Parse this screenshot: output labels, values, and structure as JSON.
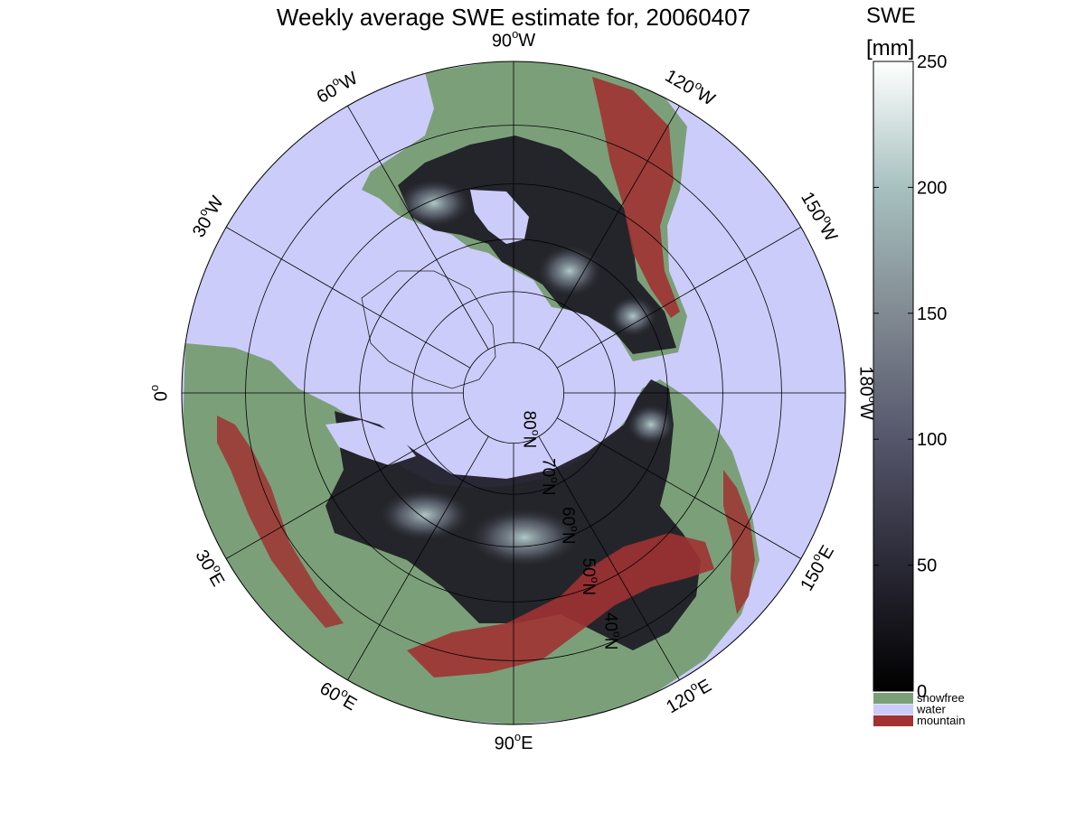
{
  "title": "Weekly average SWE estimate for, 20060407",
  "colorbar": {
    "label_line1": "SWE",
    "label_line2": "[mm]",
    "min": 0,
    "max": 250,
    "ticks": [
      {
        "value": 0,
        "label": "0"
      },
      {
        "value": 50,
        "label": "50"
      },
      {
        "value": 100,
        "label": "100"
      },
      {
        "value": 150,
        "label": "150"
      },
      {
        "value": 200,
        "label": "200"
      },
      {
        "value": 250,
        "label": "250"
      }
    ],
    "gradient_colors": [
      "#000000",
      "#2a2936",
      "#55566b",
      "#818a92",
      "#a7c1bf",
      "#ffffff"
    ],
    "categories": [
      {
        "label": "snowfree",
        "color": "#7ba079"
      },
      {
        "label": "water",
        "color": "#ccccfb"
      },
      {
        "label": "mountain",
        "color": "#a03232"
      }
    ]
  },
  "map": {
    "projection": "north-polar-stereographic",
    "ocean_color": "#ccccfb",
    "land_color": "#7ba079",
    "mountain_color": "#a03232",
    "snow_dark_color": "#1b1a24",
    "snow_light_color": "#a9c4c2",
    "longitude_labels": [
      {
        "deg": 90,
        "hemi": "W",
        "label_angle": 0
      },
      {
        "deg": 120,
        "hemi": "W",
        "label_angle": 30
      },
      {
        "deg": 150,
        "hemi": "W",
        "label_angle": 60
      },
      {
        "deg": 180,
        "hemi": "W",
        "label_angle": 90
      },
      {
        "deg": 150,
        "hemi": "E",
        "label_angle": 120
      },
      {
        "deg": 120,
        "hemi": "E",
        "label_angle": 150
      },
      {
        "deg": 90,
        "hemi": "E",
        "label_angle": 180
      },
      {
        "deg": 60,
        "hemi": "E",
        "label_angle": 210
      },
      {
        "deg": 30,
        "hemi": "E",
        "label_angle": 240
      },
      {
        "deg": 0,
        "hemi": "",
        "label_angle": 270
      },
      {
        "deg": 30,
        "hemi": "W",
        "label_angle": 300
      },
      {
        "deg": 60,
        "hemi": "W",
        "label_angle": 330
      }
    ],
    "latitude_labels": [
      {
        "deg": 80,
        "hemi": "N"
      },
      {
        "deg": 70,
        "hemi": "N"
      },
      {
        "deg": 60,
        "hemi": "N"
      },
      {
        "deg": 50,
        "hemi": "N"
      },
      {
        "deg": 40,
        "hemi": "N"
      }
    ]
  }
}
